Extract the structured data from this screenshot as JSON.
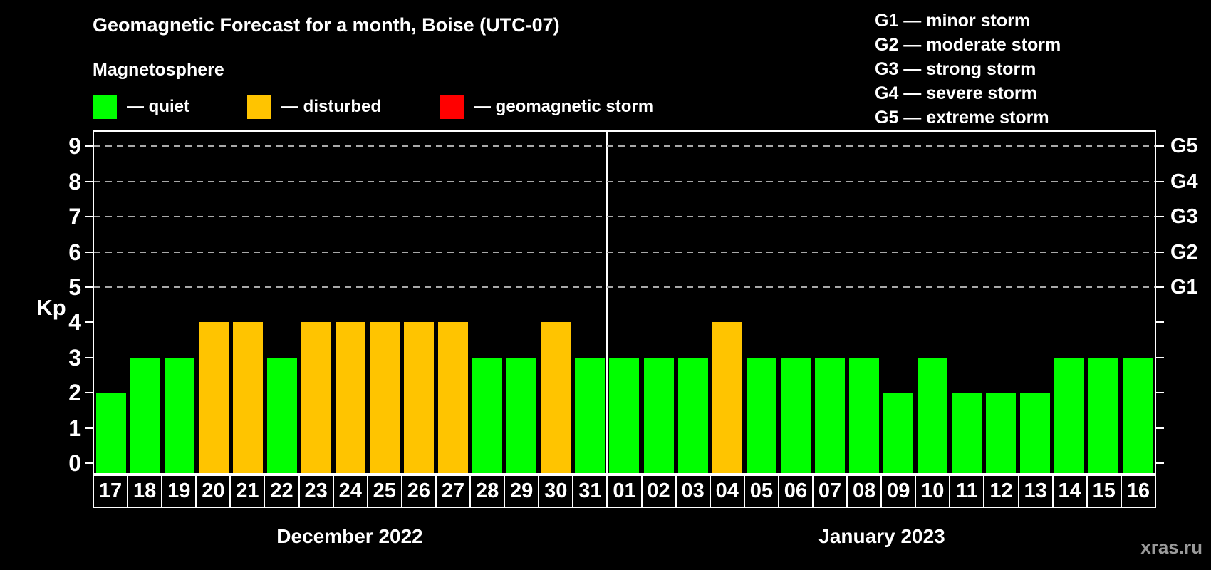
{
  "header": {
    "title": "Geomagnetic Forecast for a month, Boise (UTC-07)",
    "subtitle": "Magnetosphere"
  },
  "magnetosphere_legend": [
    {
      "id": "quiet",
      "swatch_color": "#00ff00",
      "label": "— quiet"
    },
    {
      "id": "disturbed",
      "swatch_color": "#ffc400",
      "label": "— disturbed"
    },
    {
      "id": "storm",
      "swatch_color": "#ff0000",
      "label": "— geomagnetic storm"
    }
  ],
  "storm_scale_legend": [
    "G1 — minor storm",
    "G2 — moderate storm",
    "G3 — strong storm",
    "G4 — severe storm",
    "G5 — extreme storm"
  ],
  "watermark": "xras.ru",
  "chart_data": {
    "type": "bar",
    "title": "Geomagnetic Forecast for a month, Boise (UTC-07)",
    "ylabel": "Kp",
    "ylim": [
      -0.35,
      9.45
    ],
    "y_ticks": [
      0,
      1,
      2,
      3,
      4,
      5,
      6,
      7,
      8,
      9
    ],
    "gridlines_at_kp": [
      5,
      6,
      7,
      8,
      9
    ],
    "grid_style": "dashed gray horizontal lines at storm G-levels",
    "right_axis": [
      {
        "kp": 5,
        "label": "G1"
      },
      {
        "kp": 6,
        "label": "G2"
      },
      {
        "kp": 7,
        "label": "G3"
      },
      {
        "kp": 8,
        "label": "G4"
      },
      {
        "kp": 9,
        "label": "G5"
      }
    ],
    "bar_colors": {
      "quiet": "#00ff00",
      "disturbed": "#ffc400",
      "storm": "#ff0000"
    },
    "months": [
      {
        "label": "December 2022",
        "days": [
          "17",
          "18",
          "19",
          "20",
          "21",
          "22",
          "23",
          "24",
          "25",
          "26",
          "27",
          "28",
          "29",
          "30",
          "31"
        ]
      },
      {
        "label": "January 2023",
        "days": [
          "01",
          "02",
          "03",
          "04",
          "05",
          "06",
          "07",
          "08",
          "09",
          "10",
          "11",
          "12",
          "13",
          "14",
          "15",
          "16"
        ]
      }
    ],
    "values": [
      2,
      3,
      3,
      4,
      4,
      3,
      4,
      4,
      4,
      4,
      4,
      3,
      3,
      4,
      3,
      3,
      3,
      3,
      4,
      3,
      3,
      3,
      3,
      2,
      3,
      2,
      2,
      2,
      3,
      3,
      3
    ],
    "statuses": [
      "quiet",
      "quiet",
      "quiet",
      "disturbed",
      "disturbed",
      "quiet",
      "disturbed",
      "disturbed",
      "disturbed",
      "disturbed",
      "disturbed",
      "quiet",
      "quiet",
      "disturbed",
      "quiet",
      "quiet",
      "quiet",
      "quiet",
      "disturbed",
      "quiet",
      "quiet",
      "quiet",
      "quiet",
      "quiet",
      "quiet",
      "quiet",
      "quiet",
      "quiet",
      "quiet",
      "quiet",
      "quiet"
    ]
  }
}
